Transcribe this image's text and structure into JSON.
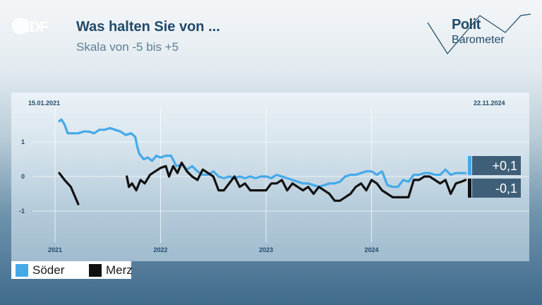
{
  "header": {
    "logo_text": "ZDF",
    "title": "Was halten Sie von ...",
    "subtitle": "Skala von -5 bis +5",
    "brand_line1": "Polit",
    "brand_line2": "Barometer"
  },
  "chart_data": {
    "type": "line",
    "date_start": "15.01.2021",
    "date_end": "22.11.2024",
    "y_ticks": [
      "1",
      "0",
      "-1"
    ],
    "x_ticks": [
      "2021",
      "2022",
      "2023",
      "2024"
    ],
    "ylim": [
      -1.9,
      2.0
    ],
    "grid": true,
    "legend_position": "bottom-left",
    "series": [
      {
        "name": "Söder",
        "color": "#45a9e8",
        "final_label": "+0,1",
        "segments": [
          [
            [
              2021.04,
              1.6
            ],
            [
              2021.06,
              1.65
            ],
            [
              2021.09,
              1.5
            ],
            [
              2021.12,
              1.25
            ],
            [
              2021.17,
              1.25
            ],
            [
              2021.22,
              1.25
            ],
            [
              2021.27,
              1.3
            ],
            [
              2021.32,
              1.3
            ],
            [
              2021.37,
              1.25
            ],
            [
              2021.42,
              1.35
            ],
            [
              2021.47,
              1.35
            ],
            [
              2021.52,
              1.4
            ],
            [
              2021.57,
              1.35
            ],
            [
              2021.62,
              1.3
            ],
            [
              2021.67,
              1.2
            ],
            [
              2021.72,
              1.25
            ],
            [
              2021.76,
              1.15
            ],
            [
              2021.78,
              0.85
            ],
            [
              2021.8,
              0.65
            ],
            [
              2021.84,
              0.5
            ],
            [
              2021.88,
              0.55
            ],
            [
              2021.92,
              0.45
            ],
            [
              2021.96,
              0.6
            ],
            [
              2022.0,
              0.55
            ],
            [
              2022.05,
              0.6
            ],
            [
              2022.1,
              0.6
            ],
            [
              2022.15,
              0.3
            ],
            [
              2022.2,
              0.35
            ],
            [
              2022.25,
              0.2
            ],
            [
              2022.3,
              0.3
            ],
            [
              2022.35,
              0.15
            ],
            [
              2022.4,
              0.05
            ],
            [
              2022.45,
              0.05
            ],
            [
              2022.5,
              0.15
            ],
            [
              2022.55,
              0.0
            ],
            [
              2022.6,
              -0.05
            ],
            [
              2022.65,
              0.0
            ],
            [
              2022.7,
              -0.05
            ],
            [
              2022.75,
              0.0
            ],
            [
              2022.8,
              -0.05
            ],
            [
              2022.85,
              0.0
            ],
            [
              2022.9,
              -0.05
            ],
            [
              2022.95,
              0.0
            ],
            [
              2023.0,
              0.0
            ],
            [
              2023.05,
              -0.05
            ],
            [
              2023.1,
              0.05
            ],
            [
              2023.15,
              0.0
            ],
            [
              2023.2,
              -0.05
            ],
            [
              2023.25,
              -0.1
            ],
            [
              2023.3,
              -0.15
            ],
            [
              2023.35,
              -0.2
            ],
            [
              2023.4,
              -0.2
            ],
            [
              2023.45,
              -0.25
            ],
            [
              2023.5,
              -0.3
            ],
            [
              2023.55,
              -0.25
            ],
            [
              2023.6,
              -0.2
            ],
            [
              2023.65,
              -0.2
            ],
            [
              2023.7,
              -0.15
            ],
            [
              2023.75,
              0.0
            ],
            [
              2023.8,
              0.05
            ],
            [
              2023.85,
              0.05
            ],
            [
              2023.9,
              0.1
            ],
            [
              2023.95,
              0.15
            ],
            [
              2024.0,
              0.15
            ],
            [
              2024.05,
              0.05
            ],
            [
              2024.1,
              0.15
            ],
            [
              2024.15,
              -0.25
            ],
            [
              2024.2,
              -0.3
            ],
            [
              2024.25,
              -0.3
            ],
            [
              2024.3,
              -0.1
            ],
            [
              2024.35,
              -0.15
            ],
            [
              2024.4,
              0.05
            ],
            [
              2024.45,
              0.05
            ],
            [
              2024.5,
              0.1
            ],
            [
              2024.55,
              0.1
            ],
            [
              2024.6,
              0.05
            ],
            [
              2024.65,
              0.05
            ],
            [
              2024.7,
              0.2
            ],
            [
              2024.75,
              0.05
            ],
            [
              2024.8,
              0.1
            ],
            [
              2024.85,
              0.1
            ],
            [
              2024.89,
              0.1
            ]
          ]
        ]
      },
      {
        "name": "Merz",
        "color": "#111111",
        "final_label": "-0,1",
        "segments": [
          [
            [
              2021.04,
              0.1
            ],
            [
              2021.09,
              -0.1
            ],
            [
              2021.15,
              -0.3
            ],
            [
              2021.22,
              -0.8
            ]
          ],
          [
            [
              2021.68,
              0.0
            ],
            [
              2021.7,
              -0.3
            ],
            [
              2021.73,
              -0.2
            ],
            [
              2021.77,
              -0.4
            ],
            [
              2021.81,
              -0.1
            ],
            [
              2021.85,
              -0.2
            ],
            [
              2021.9,
              0.05
            ],
            [
              2021.95,
              0.15
            ],
            [
              2022.0,
              0.25
            ],
            [
              2022.05,
              0.3
            ],
            [
              2022.08,
              0.0
            ],
            [
              2022.12,
              0.3
            ],
            [
              2022.16,
              0.1
            ],
            [
              2022.2,
              0.4
            ],
            [
              2022.25,
              0.15
            ],
            [
              2022.3,
              0.0
            ],
            [
              2022.35,
              -0.1
            ],
            [
              2022.4,
              0.2
            ],
            [
              2022.45,
              0.1
            ],
            [
              2022.5,
              0.0
            ],
            [
              2022.55,
              -0.4
            ],
            [
              2022.6,
              -0.4
            ],
            [
              2022.65,
              -0.2
            ],
            [
              2022.7,
              0.0
            ],
            [
              2022.75,
              -0.3
            ],
            [
              2022.8,
              -0.2
            ],
            [
              2022.85,
              -0.4
            ],
            [
              2022.9,
              -0.4
            ],
            [
              2022.95,
              -0.4
            ],
            [
              2023.0,
              -0.4
            ],
            [
              2023.05,
              -0.2
            ],
            [
              2023.1,
              -0.2
            ],
            [
              2023.15,
              -0.1
            ],
            [
              2023.2,
              -0.4
            ],
            [
              2023.25,
              -0.2
            ],
            [
              2023.3,
              -0.3
            ],
            [
              2023.35,
              -0.4
            ],
            [
              2023.4,
              -0.3
            ],
            [
              2023.45,
              -0.5
            ],
            [
              2023.5,
              -0.3
            ],
            [
              2023.55,
              -0.4
            ],
            [
              2023.6,
              -0.5
            ],
            [
              2023.65,
              -0.7
            ],
            [
              2023.7,
              -0.7
            ],
            [
              2023.75,
              -0.6
            ],
            [
              2023.8,
              -0.5
            ],
            [
              2023.85,
              -0.3
            ],
            [
              2023.9,
              -0.2
            ],
            [
              2023.95,
              -0.4
            ],
            [
              2024.0,
              -0.1
            ],
            [
              2024.05,
              -0.2
            ],
            [
              2024.1,
              -0.4
            ],
            [
              2024.15,
              -0.5
            ],
            [
              2024.2,
              -0.6
            ],
            [
              2024.25,
              -0.6
            ],
            [
              2024.3,
              -0.6
            ],
            [
              2024.35,
              -0.6
            ],
            [
              2024.4,
              -0.1
            ],
            [
              2024.45,
              -0.1
            ],
            [
              2024.5,
              0.0
            ],
            [
              2024.55,
              0.0
            ],
            [
              2024.6,
              -0.1
            ],
            [
              2024.65,
              -0.2
            ],
            [
              2024.7,
              -0.1
            ],
            [
              2024.75,
              -0.5
            ],
            [
              2024.8,
              -0.2
            ],
            [
              2024.85,
              -0.15
            ],
            [
              2024.89,
              -0.1
            ]
          ]
        ]
      }
    ]
  }
}
